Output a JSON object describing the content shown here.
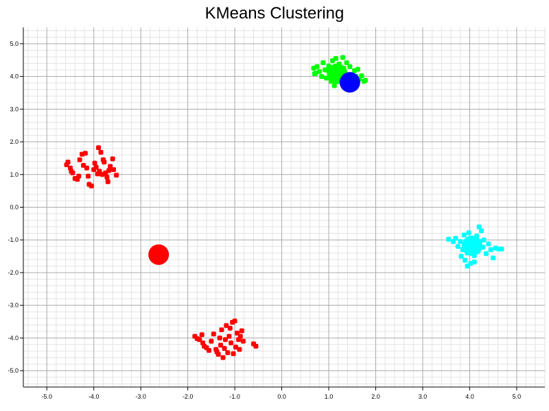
{
  "chart_data": {
    "type": "scatter",
    "title": "KMeans Clustering",
    "xlabel": "",
    "ylabel": "",
    "xlim": [
      -5.5,
      5.6
    ],
    "ylim": [
      -5.5,
      5.5
    ],
    "grid": true,
    "xticks": [
      "-5.0",
      "-4.0",
      "-3.0",
      "-2.0",
      "-1.0",
      "0.0",
      "1.0",
      "2.0",
      "3.0",
      "4.0",
      "5.0"
    ],
    "yticks": [
      "5.0",
      "4.0",
      "3.0",
      "2.0",
      "1.0",
      "0.0",
      "-1.0",
      "-2.0",
      "-3.0",
      "-4.0",
      "-5.0"
    ],
    "series": [
      {
        "color": "#ff0000",
        "points": [
          [
            -4.55,
            1.38
          ],
          [
            -4.58,
            1.3
          ],
          [
            -4.5,
            1.2
          ],
          [
            -4.45,
            1.05
          ],
          [
            -4.4,
            0.88
          ],
          [
            -4.32,
            0.95
          ],
          [
            -4.3,
            1.45
          ],
          [
            -4.25,
            1.62
          ],
          [
            -4.22,
            1.28
          ],
          [
            -4.18,
            1.65
          ],
          [
            -4.15,
            1.2
          ],
          [
            -4.12,
            0.95
          ],
          [
            -4.1,
            0.7
          ],
          [
            -4.05,
            0.65
          ],
          [
            -4.0,
            1.15
          ],
          [
            -3.98,
            1.35
          ],
          [
            -3.95,
            1.22
          ],
          [
            -3.9,
            1.82
          ],
          [
            -3.88,
            1.1
          ],
          [
            -3.85,
            1.68
          ],
          [
            -3.82,
            1.0
          ],
          [
            -3.8,
            1.45
          ],
          [
            -3.78,
            1.38
          ],
          [
            -3.75,
            1.05
          ],
          [
            -3.72,
            0.92
          ],
          [
            -3.7,
            0.78
          ],
          [
            -3.68,
            1.12
          ],
          [
            -3.65,
            1.25
          ],
          [
            -3.6,
            1.48
          ],
          [
            -3.58,
            1.15
          ],
          [
            -3.52,
            0.98
          ],
          [
            -4.48,
            1.1
          ],
          [
            -4.35,
            0.85
          ],
          [
            -3.92,
            1.02
          ],
          [
            -1.85,
            -3.95
          ],
          [
            -1.8,
            -4.02
          ],
          [
            -1.75,
            -4.05
          ],
          [
            -1.7,
            -3.9
          ],
          [
            -1.65,
            -4.25
          ],
          [
            -1.6,
            -4.3
          ],
          [
            -1.55,
            -4.38
          ],
          [
            -1.5,
            -4.1
          ],
          [
            -1.45,
            -3.88
          ],
          [
            -1.4,
            -4.35
          ],
          [
            -1.38,
            -4.42
          ],
          [
            -1.35,
            -4.5
          ],
          [
            -1.3,
            -4.22
          ],
          [
            -1.28,
            -3.75
          ],
          [
            -1.25,
            -4.6
          ],
          [
            -1.22,
            -4.32
          ],
          [
            -1.2,
            -4.05
          ],
          [
            -1.18,
            -3.62
          ],
          [
            -1.15,
            -4.45
          ],
          [
            -1.12,
            -3.95
          ],
          [
            -1.1,
            -3.7
          ],
          [
            -1.08,
            -4.15
          ],
          [
            -1.05,
            -3.52
          ],
          [
            -1.03,
            -4.48
          ],
          [
            -1.0,
            -3.48
          ],
          [
            -0.98,
            -4.28
          ],
          [
            -0.95,
            -3.85
          ],
          [
            -0.92,
            -4.05
          ],
          [
            -0.9,
            -4.35
          ],
          [
            -0.88,
            -3.95
          ],
          [
            -0.85,
            -3.78
          ],
          [
            -0.82,
            -4.1
          ],
          [
            -0.6,
            -4.18
          ],
          [
            -0.55,
            -4.25
          ],
          [
            -1.68,
            -4.15
          ],
          [
            -1.32,
            -4.0
          ]
        ]
      },
      {
        "color": "#00ff00",
        "points": [
          [
            0.68,
            4.25
          ],
          [
            0.7,
            4.08
          ],
          [
            0.75,
            4.3
          ],
          [
            0.8,
            4.15
          ],
          [
            0.85,
            4.0
          ],
          [
            0.88,
            4.42
          ],
          [
            0.92,
            4.2
          ],
          [
            0.95,
            3.95
          ],
          [
            1.0,
            4.32
          ],
          [
            1.02,
            4.08
          ],
          [
            1.05,
            3.85
          ],
          [
            1.08,
            4.48
          ],
          [
            1.1,
            4.2
          ],
          [
            1.12,
            3.72
          ],
          [
            1.15,
            4.55
          ],
          [
            1.18,
            4.0
          ],
          [
            1.2,
            3.92
          ],
          [
            1.22,
            4.38
          ],
          [
            1.25,
            4.12
          ],
          [
            1.28,
            3.85
          ],
          [
            1.3,
            4.58
          ],
          [
            1.32,
            4.25
          ],
          [
            1.35,
            4.05
          ],
          [
            1.38,
            4.42
          ],
          [
            1.4,
            3.95
          ],
          [
            1.45,
            4.3
          ],
          [
            1.5,
            4.05
          ],
          [
            1.55,
            4.18
          ],
          [
            1.58,
            4.0
          ],
          [
            1.62,
            4.22
          ],
          [
            1.65,
            3.92
          ],
          [
            1.7,
            4.02
          ],
          [
            1.75,
            3.85
          ],
          [
            1.78,
            3.88
          ],
          [
            0.72,
            4.1
          ],
          [
            0.98,
            4.18
          ]
        ]
      },
      {
        "color": "#00ffff",
        "points": [
          [
            3.55,
            -0.98
          ],
          [
            3.65,
            -1.05
          ],
          [
            3.7,
            -0.95
          ],
          [
            3.75,
            -1.2
          ],
          [
            3.8,
            -1.05
          ],
          [
            3.82,
            -1.5
          ],
          [
            3.85,
            -1.3
          ],
          [
            3.88,
            -0.85
          ],
          [
            3.9,
            -1.62
          ],
          [
            3.92,
            -1.18
          ],
          [
            3.95,
            -1.4
          ],
          [
            3.98,
            -0.78
          ],
          [
            4.0,
            -1.08
          ],
          [
            4.02,
            -1.72
          ],
          [
            4.05,
            -1.25
          ],
          [
            4.08,
            -0.95
          ],
          [
            4.1,
            -1.48
          ],
          [
            4.12,
            -1.15
          ],
          [
            4.15,
            -0.88
          ],
          [
            4.18,
            -1.35
          ],
          [
            4.2,
            -0.6
          ],
          [
            4.22,
            -1.05
          ],
          [
            4.25,
            -0.72
          ],
          [
            4.28,
            -1.22
          ],
          [
            4.3,
            -1.0
          ],
          [
            4.35,
            -1.42
          ],
          [
            4.4,
            -1.12
          ],
          [
            4.45,
            -1.3
          ],
          [
            4.5,
            -1.55
          ],
          [
            4.55,
            -1.25
          ],
          [
            4.62,
            -1.28
          ],
          [
            4.68,
            -1.28
          ],
          [
            3.95,
            -1.8
          ],
          [
            4.1,
            -1.68
          ]
        ]
      }
    ],
    "centroids": [
      {
        "x": -2.62,
        "y": -1.45,
        "color": "#ff0000"
      },
      {
        "x": 1.18,
        "y": 4.08,
        "color": "#00ff00"
      },
      {
        "x": 1.45,
        "y": 3.82,
        "color": "#0000ff"
      },
      {
        "x": 4.05,
        "y": -1.18,
        "color": "#00ffff"
      }
    ]
  }
}
